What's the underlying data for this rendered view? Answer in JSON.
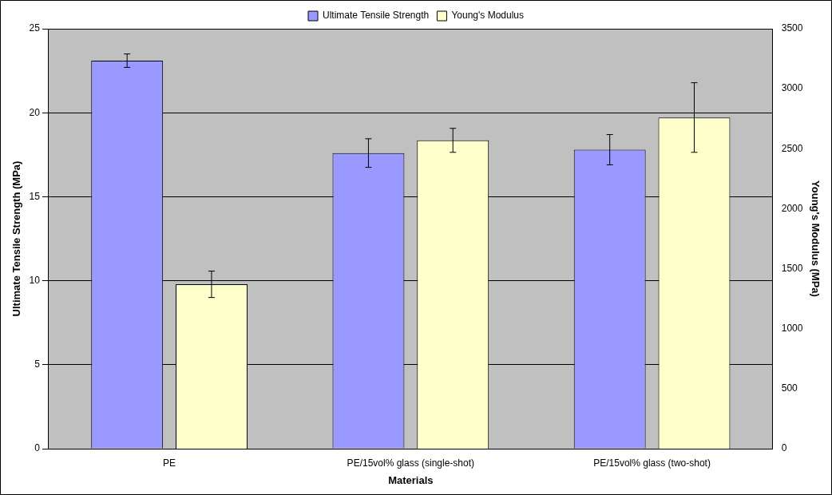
{
  "chart_data": {
    "type": "bar",
    "xlabel": "Materials",
    "ylabel": "Ultimate Tensile Strength (MPa)",
    "y2label": "Young's Modulus (MPa)",
    "categories": [
      "PE",
      "PE/15vol% glass (single-shot)",
      "PE/15vol% glass (two-shot)"
    ],
    "series": [
      {
        "name": "Ultimate Tensile Strength",
        "color": "#9999ff",
        "values": [
          23.1,
          17.6,
          17.8
        ],
        "errors": [
          0.4,
          0.85,
          0.9
        ]
      },
      {
        "name": "Young's Modulus",
        "color": "#ffffcc",
        "values": [
          1370,
          2570,
          2760
        ],
        "errors": [
          110,
          100,
          290
        ],
        "axis": "y2"
      }
    ],
    "ylim": [
      0,
      25
    ],
    "yticks": [
      0,
      5,
      10,
      15,
      20,
      25
    ],
    "y2lim": [
      0,
      3500
    ],
    "y2ticks": [
      0,
      500,
      1000,
      1500,
      2000,
      2500,
      3000,
      3500
    ],
    "grid": "y",
    "legend": "top"
  }
}
